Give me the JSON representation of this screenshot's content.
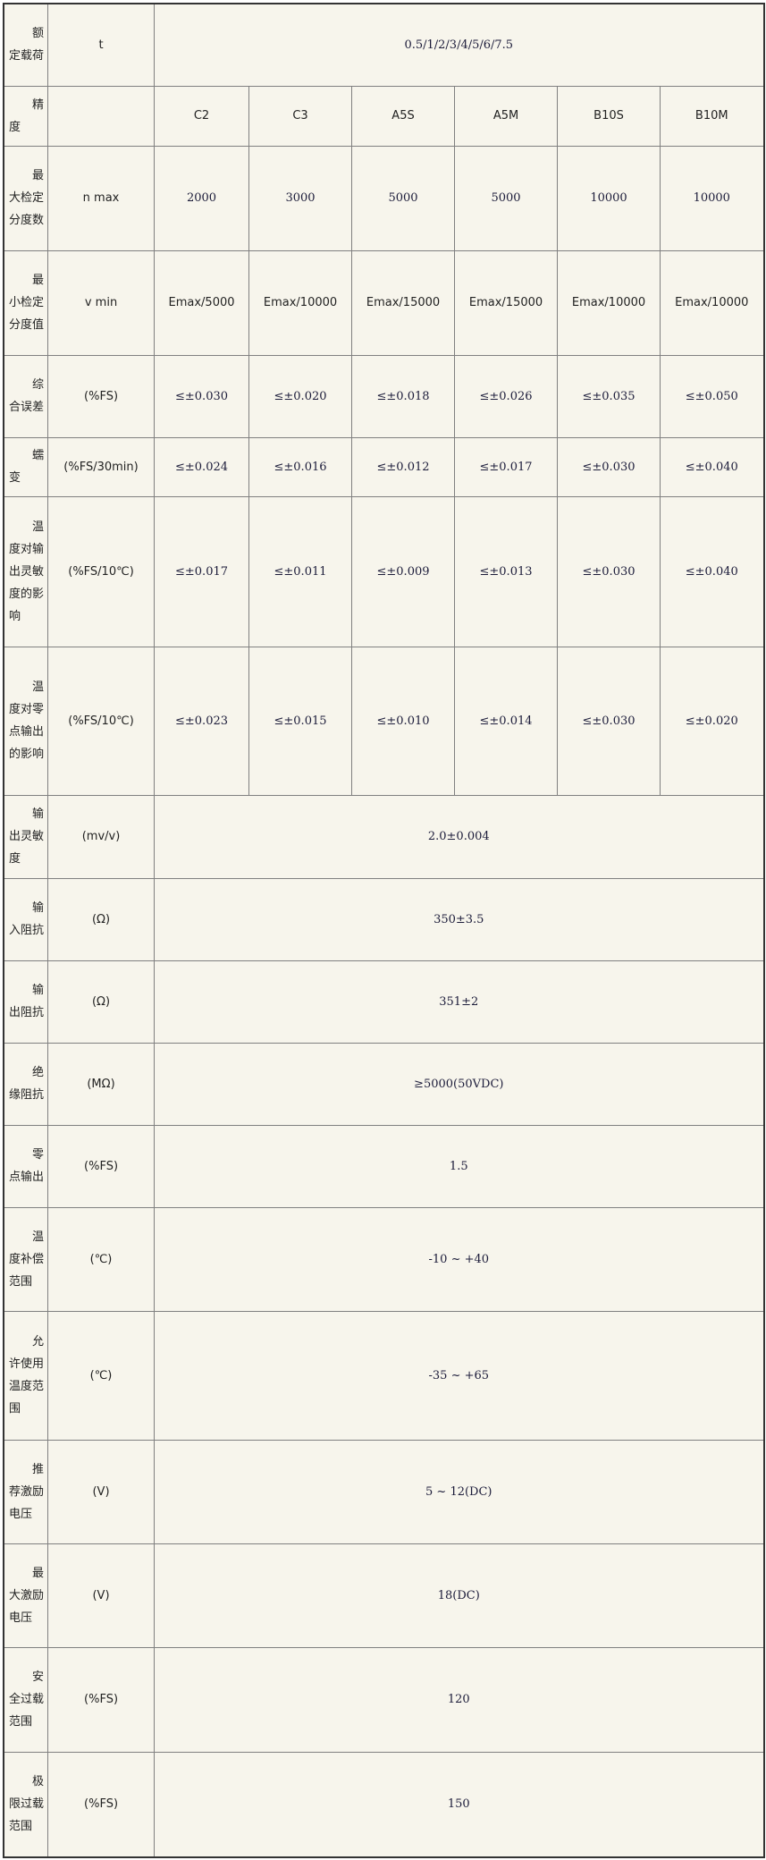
{
  "rows": [
    {
      "label": "额定载荷",
      "unit": "t",
      "span": "0.5/1/2/3/4/5/6/7.5"
    },
    {
      "label": "精度",
      "unit": "",
      "values": [
        "C2",
        "C3",
        "A5S",
        "A5M",
        "B10S",
        "B10M"
      ]
    },
    {
      "label": "最大检定分度数",
      "unit": "n max",
      "values": [
        "2000",
        "3000",
        "5000",
        "5000",
        "10000",
        "10000"
      ]
    },
    {
      "label": "最小检定分度值",
      "unit": "v min",
      "values": [
        "Emax/5000",
        "Emax/10000",
        "Emax/15000",
        "Emax/15000",
        "Emax/10000",
        "Emax/10000"
      ]
    },
    {
      "label": "综合误差",
      "unit": "(%FS)",
      "values": [
        "≤±0.030",
        "≤±0.020",
        "≤±0.018",
        "≤±0.026",
        "≤±0.035",
        "≤±0.050"
      ]
    },
    {
      "label": "蠕变",
      "unit": "(%FS/30min)",
      "values": [
        "≤±0.024",
        "≤±0.016",
        "≤±0.012",
        "≤±0.017",
        "≤±0.030",
        "≤±0.040"
      ]
    },
    {
      "label": "温度对输出灵敏度的影响",
      "unit": "(%FS/10℃)",
      "values": [
        "≤±0.017",
        "≤±0.011",
        "≤±0.009",
        "≤±0.013",
        "≤±0.030",
        "≤±0.040"
      ]
    },
    {
      "label": "温度对零点输出的影响",
      "unit": "(%FS/10℃)",
      "values": [
        "≤±0.023",
        "≤±0.015",
        "≤±0.010",
        "≤±0.014",
        "≤±0.030",
        "≤±0.020"
      ]
    },
    {
      "label": "输出灵敏度",
      "unit": "(mv/v)",
      "span": "2.0±0.004"
    },
    {
      "label": "输入阻抗",
      "unit": "(Ω)",
      "span": "350±3.5"
    },
    {
      "label": "输出阻抗",
      "unit": "(Ω)",
      "span": "351±2"
    },
    {
      "label": "绝缘阻抗",
      "unit": "(MΩ)",
      "span": "≥5000(50VDC)"
    },
    {
      "label": "零点输出",
      "unit": "(%FS)",
      "span": "1.5"
    },
    {
      "label": "温度补偿范围",
      "unit": "(℃)",
      "span": "-10 ~ +40"
    },
    {
      "label": "允许使用温度范围",
      "unit": "(℃)",
      "span": "-35 ~ +65"
    },
    {
      "label": "推荐激励电压",
      "unit": "(V)",
      "span": "5 ~ 12(DC)"
    },
    {
      "label": "最大激励电压",
      "unit": "(V)",
      "span": "18(DC)"
    },
    {
      "label": "安全过载范围",
      "unit": "(%FS)",
      "span": "120"
    },
    {
      "label": "极限过载范围",
      "unit": "(%FS)",
      "span": "150"
    }
  ]
}
